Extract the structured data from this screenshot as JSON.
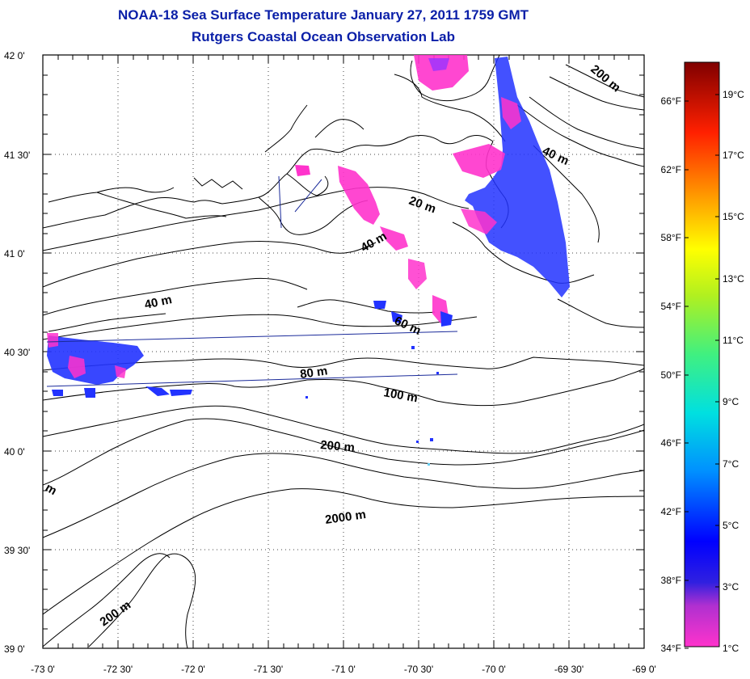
{
  "title_line1": "NOAA-18 Sea Surface Temperature January 27, 2011 1759 GMT",
  "title_line2": "Rutgers Coastal Ocean Observation Lab",
  "lon_labels": [
    "-73 0'",
    "-72 30'",
    "-72 0'",
    "-71 30'",
    "-71 0'",
    "-70 30'",
    "-70 0'",
    "-69 30'",
    "-69 0'"
  ],
  "lat_labels": [
    "42 0'",
    "41 30'",
    "41 0'",
    "40 30'",
    "40 0'",
    "39 30'",
    "39 0'"
  ],
  "depth_labels": [
    "200 m",
    "40 m",
    "20 m",
    "40 m",
    "40 m",
    "60 m",
    "80 m",
    "100 m",
    "200 m",
    "2000 m",
    "200 m",
    "m"
  ],
  "colorbar": {
    "fahrenheit": [
      "66°F",
      "62°F",
      "58°F",
      "54°F",
      "50°F",
      "46°F",
      "42°F",
      "38°F",
      "34°F"
    ],
    "celsius": [
      "19°C",
      "17°C",
      "15°C",
      "13°C",
      "11°C",
      "9°C",
      "7°C",
      "5°C",
      "3°C",
      "1°C"
    ]
  },
  "colors": {
    "title": "#0a1fa8",
    "sst_cold_magenta": "#ff33cc",
    "sst_cold_blue": "#2244ff"
  }
}
